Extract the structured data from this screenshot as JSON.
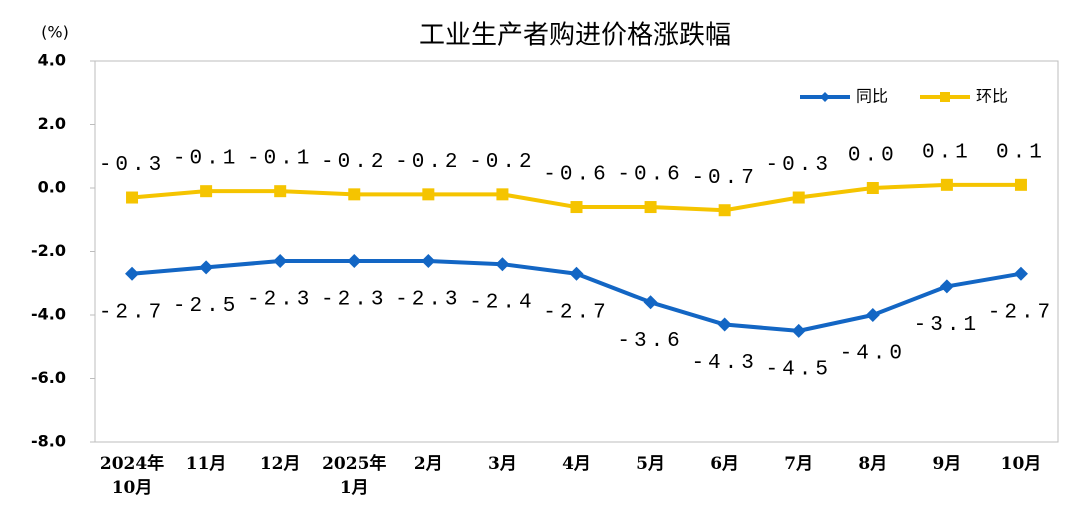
{
  "chart_data": {
    "type": "line",
    "title": "工业生产者购进价格涨跌幅",
    "y_unit": "(%)",
    "categories": [
      "2024年\n10月",
      "11月",
      "12月",
      "2025年\n1月",
      "2月",
      "3月",
      "4月",
      "5月",
      "6月",
      "7月",
      "8月",
      "9月",
      "10月"
    ],
    "series": [
      {
        "name": "同比",
        "color": "#1366c4",
        "marker": "diamond",
        "values": [
          -2.7,
          -2.5,
          -2.3,
          -2.3,
          -2.3,
          -2.4,
          -2.7,
          -3.6,
          -4.3,
          -4.5,
          -4.0,
          -3.1,
          -2.7
        ],
        "value_labels": [
          "-2.7",
          "-2.5",
          "-2.3",
          "-2.3",
          "-2.3",
          "-2.4",
          "-2.7",
          "-3.6",
          "-4.3",
          "-4.5",
          "-4.0",
          "-3.1",
          "-2.7"
        ]
      },
      {
        "name": "环比",
        "color": "#f5c400",
        "marker": "square",
        "values": [
          -0.3,
          -0.1,
          -0.1,
          -0.2,
          -0.2,
          -0.2,
          -0.6,
          -0.6,
          -0.7,
          -0.3,
          0.0,
          0.1,
          0.1
        ],
        "value_labels": [
          "-0.3",
          "-0.1",
          "-0.1",
          "-0.2",
          "-0.2",
          "-0.2",
          "-0.6",
          "-0.6",
          "-0.7",
          "-0.3",
          "0.0",
          "0.1",
          "0.1"
        ]
      }
    ],
    "ylim": [
      -8,
      4
    ],
    "yticks": [
      {
        "value": -8,
        "label": "-8.0"
      },
      {
        "value": -6,
        "label": "-6.0"
      },
      {
        "value": -4,
        "label": "-4.0"
      },
      {
        "value": -2,
        "label": "-2.0"
      },
      {
        "value": 0,
        "label": "0.0"
      },
      {
        "value": 2,
        "label": "2.0"
      },
      {
        "value": 4,
        "label": "4.0"
      }
    ],
    "grid": false,
    "legend": "top-right"
  }
}
